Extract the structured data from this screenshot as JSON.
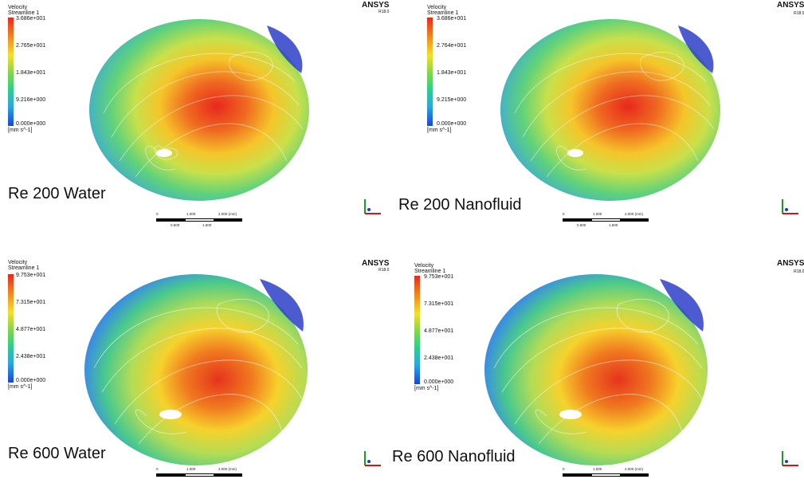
{
  "panels": [
    {
      "legend": {
        "variable": "Velocity",
        "object": "Streamline 1",
        "ticks": [
          "3.686e+001",
          "2.765e+001",
          "1.843e+001",
          "9.216e+000",
          "0.000e+000"
        ],
        "units": "[mm s^-1]"
      },
      "caption": "Re 200 Water",
      "scale": {
        "ticks": [
          "0",
          "1.000",
          "2.000 (mm)"
        ],
        "minor": [
          "0.500",
          "1.500"
        ]
      }
    },
    {
      "brand": "ANSYS",
      "version": "R18.0",
      "legend": {
        "variable": "Velocity",
        "object": "Streamline 1",
        "ticks": [
          "3.686e+001",
          "2.764e+001",
          "1.843e+001",
          "9.215e+000",
          "0.000e+000"
        ],
        "units": "[mm s^-1]"
      },
      "caption": "Re 200 Nanofluid",
      "scale": {
        "ticks": [
          "0",
          "1.000",
          "2.000 (mm)"
        ],
        "minor": [
          "0.500",
          "1.500"
        ]
      }
    },
    {
      "legend": {
        "variable": "Velocity",
        "object": "Streamline 1",
        "ticks": [
          "9.753e+001",
          "7.315e+001",
          "4.877e+001",
          "2.438e+001",
          "0.000e+000"
        ],
        "units": "[mm s^-1]"
      },
      "caption": "Re 600 Water",
      "scale": {
        "ticks": [
          "0",
          "1.000",
          "2.000 (mm)"
        ],
        "minor": [
          "0.500",
          "1.500"
        ]
      }
    },
    {
      "brand": "ANSYS",
      "version": "R18.0",
      "legend": {
        "variable": "Velocity",
        "object": "Streamline 1",
        "ticks": [
          "9.753e+001",
          "7.315e+001",
          "4.877e+001",
          "2.438e+001",
          "0.000e+000"
        ],
        "units": "[mm s^-1]"
      },
      "caption": "Re 600 Nanofluid",
      "scale": {
        "ticks": [
          "0",
          "1.000",
          "2.000 (mm)"
        ],
        "minor": [
          "0.500",
          "1.500"
        ]
      }
    }
  ],
  "edge_brand": {
    "brand": "ANSYS",
    "version_top": "R18.0",
    "version_bottom": "R18.0"
  },
  "colors": {
    "max": "#e8281e",
    "mid": "#f4e02a",
    "min": "#1a46d8"
  }
}
